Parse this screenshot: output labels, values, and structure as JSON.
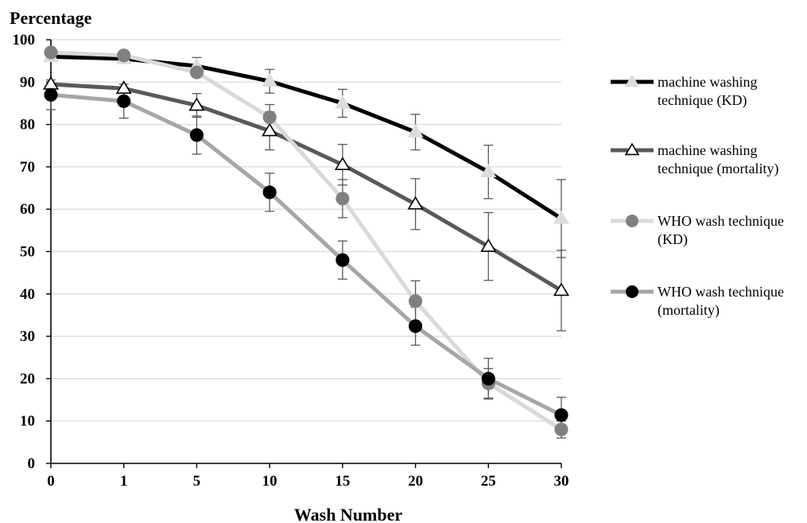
{
  "chart_data": {
    "type": "line",
    "title": "",
    "ylabel": "Percentage",
    "xlabel": "Wash Number",
    "categories": [
      "0",
      "1",
      "5",
      "10",
      "15",
      "20",
      "25",
      "30"
    ],
    "ylim": [
      0,
      100
    ],
    "yticks": [
      0,
      10,
      20,
      30,
      40,
      50,
      60,
      70,
      80,
      90,
      100
    ],
    "grid": "horizontal",
    "legend_position": "right",
    "series": [
      {
        "name": "machine washing technique (KD)",
        "legend_lines": [
          "machine washing",
          "technique (KD)"
        ],
        "values": [
          96,
          95.5,
          93.8,
          90.2,
          85,
          78.2,
          68.8,
          57.8
        ],
        "error": [
          0,
          0,
          2,
          2.8,
          3.3,
          4.2,
          6.3,
          9.2
        ],
        "line_color": "#000000",
        "marker": "triangle",
        "marker_fill": "#dcdcdc",
        "marker_stroke": "#dcdcdc"
      },
      {
        "name": "machine washing technique (mortality)",
        "legend_lines": [
          "machine washing",
          "technique (mortality)"
        ],
        "values": [
          89.5,
          88.5,
          84.5,
          78.5,
          70.5,
          61.2,
          51.2,
          40.8
        ],
        "error": [
          0,
          0,
          2.8,
          4.5,
          4.8,
          6,
          8,
          9.5
        ],
        "line_color": "#595959",
        "marker": "triangle",
        "marker_fill": "#ffffff",
        "marker_stroke": "#000000"
      },
      {
        "name": "WHO wash technique (KD)",
        "legend_lines": [
          "WHO wash technique",
          "(KD)"
        ],
        "values": [
          97,
          96.3,
          92.3,
          81.7,
          62.5,
          38.3,
          18.9,
          8
        ],
        "error": [
          0,
          0,
          0,
          3,
          4.5,
          4.8,
          3.5,
          2
        ],
        "line_color": "#d9d9d9",
        "marker": "circle",
        "marker_fill": "#808080",
        "marker_stroke": "#808080"
      },
      {
        "name": "WHO wash technique (mortality)",
        "legend_lines": [
          "WHO wash technique",
          "(mortality)"
        ],
        "values": [
          87,
          85.5,
          77.5,
          64,
          48,
          32.4,
          20,
          11.4
        ],
        "error": [
          3.5,
          4,
          4.5,
          4.5,
          4.5,
          4.5,
          4.8,
          4.2
        ],
        "line_color": "#a6a6a6",
        "marker": "circle",
        "marker_fill": "#000000",
        "marker_stroke": "#000000"
      }
    ]
  }
}
